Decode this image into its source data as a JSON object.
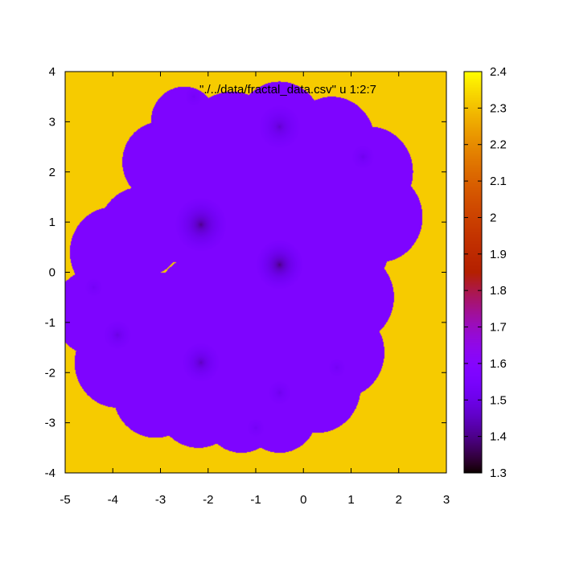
{
  "chart_data": {
    "type": "heatmap",
    "title": "\"./../data/fractal_data.csv\" u 1:2:7",
    "xlim": [
      -5,
      3
    ],
    "ylim": [
      -4,
      4
    ],
    "x_ticks": [
      -5,
      -4,
      -3,
      -2,
      -1,
      0,
      1,
      2,
      3
    ],
    "y_ticks": [
      -4,
      -3,
      -2,
      -1,
      0,
      1,
      2,
      3,
      4
    ],
    "colorbar": {
      "range": [
        1.3,
        2.4
      ],
      "ticks": [
        1.3,
        1.4,
        1.5,
        1.6,
        1.7,
        1.8,
        1.9,
        2.0,
        2.1,
        2.2,
        2.3,
        2.4
      ],
      "tick_labels": [
        "1.3",
        "1.4",
        "1.5",
        "1.6",
        "1.7",
        "1.8",
        "1.9",
        "2",
        "2.1",
        "2.2",
        "2.3",
        "2.4"
      ],
      "palette": "black-purple-red-orange-yellow"
    },
    "background_value": 2.32,
    "region_value": 1.57,
    "region_disks": [
      [
        -1.5,
        2.6,
        1.0
      ],
      [
        -2.5,
        3.0,
        0.7
      ],
      [
        -3.0,
        2.2,
        0.8
      ],
      [
        -0.5,
        2.9,
        0.9
      ],
      [
        0.6,
        2.6,
        0.9
      ],
      [
        1.4,
        2.0,
        0.9
      ],
      [
        1.6,
        1.1,
        0.9
      ],
      [
        0.9,
        0.5,
        0.9
      ],
      [
        1.0,
        -0.5,
        0.9
      ],
      [
        0.8,
        -1.6,
        0.9
      ],
      [
        0.3,
        -2.3,
        0.9
      ],
      [
        -0.5,
        -2.8,
        0.8
      ],
      [
        -1.3,
        -2.8,
        0.8
      ],
      [
        -2.2,
        -2.6,
        0.9
      ],
      [
        -3.1,
        -2.4,
        0.9
      ],
      [
        -3.9,
        -1.8,
        0.9
      ],
      [
        -4.4,
        -0.8,
        0.85
      ],
      [
        -4.0,
        0.4,
        0.9
      ],
      [
        -3.4,
        0.8,
        0.9
      ],
      [
        -2.6,
        1.2,
        1.0
      ],
      [
        -1.5,
        1.0,
        1.2
      ],
      [
        -0.5,
        1.5,
        1.0
      ],
      [
        -0.5,
        0.0,
        1.0
      ],
      [
        -2.0,
        -0.8,
        1.2
      ],
      [
        -3.0,
        -1.0,
        1.0
      ],
      [
        -1.0,
        -1.5,
        1.0
      ],
      [
        0.2,
        1.2,
        0.9
      ],
      [
        0.2,
        -0.5,
        0.9
      ]
    ],
    "dark_points": [
      {
        "x": -2.15,
        "y": 0.95,
        "r": 0.55,
        "min": 1.38
      },
      {
        "x": -0.5,
        "y": 0.15,
        "r": 0.5,
        "min": 1.37
      },
      {
        "x": -0.5,
        "y": 2.9,
        "r": 0.45,
        "min": 1.45
      },
      {
        "x": -2.15,
        "y": -1.8,
        "r": 0.4,
        "min": 1.43
      },
      {
        "x": -3.9,
        "y": -1.25,
        "r": 0.3,
        "min": 1.48
      },
      {
        "x": -0.5,
        "y": -2.4,
        "r": 0.25,
        "min": 1.5
      },
      {
        "x": 1.25,
        "y": 2.3,
        "r": 0.25,
        "min": 1.5
      },
      {
        "x": -3.3,
        "y": 3.0,
        "r": 0.2,
        "min": 1.52
      },
      {
        "x": -2.3,
        "y": 3.5,
        "r": 0.2,
        "min": 1.52
      },
      {
        "x": -4.4,
        "y": -0.3,
        "r": 0.2,
        "min": 1.52
      },
      {
        "x": -1.0,
        "y": -3.1,
        "r": 0.2,
        "min": 1.52
      },
      {
        "x": 0.7,
        "y": -1.9,
        "r": 0.2,
        "min": 1.52
      }
    ]
  }
}
